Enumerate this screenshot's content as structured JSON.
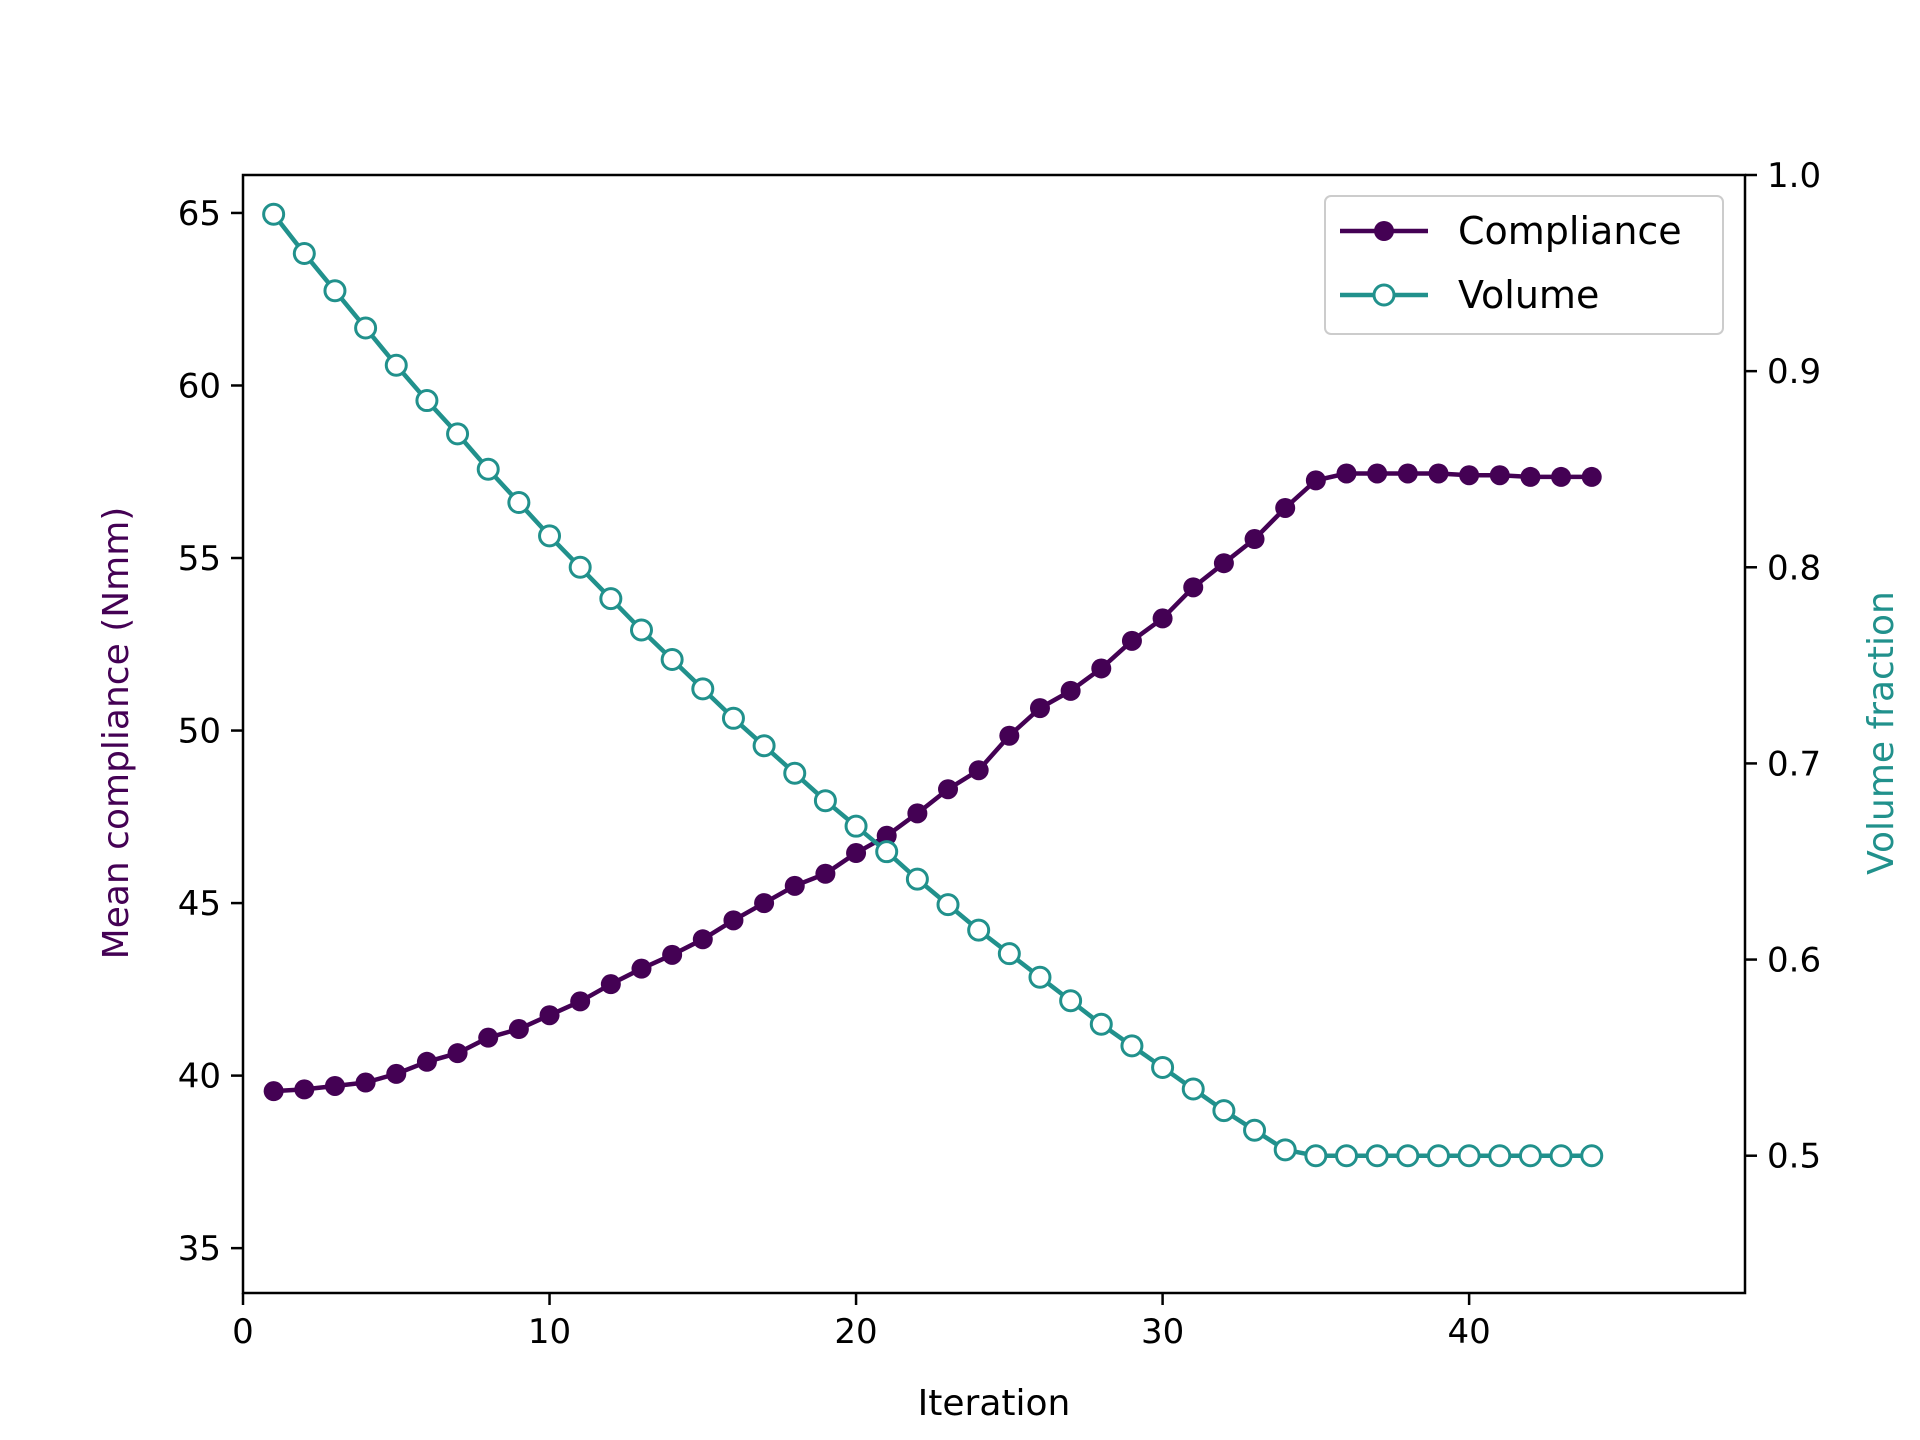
{
  "colors": {
    "compliance": "#440154",
    "volume": "#21918c",
    "axis": "#000000",
    "background": "#ffffff"
  },
  "chart_data": {
    "type": "line",
    "title": "",
    "xlabel": "Iteration",
    "ylabel_left": "Mean compliance (Nmm)",
    "ylabel_right": "Volume fraction",
    "xlim": [
      0,
      49
    ],
    "ylim_left": [
      33.7,
      66.1
    ],
    "ylim_right": [
      0.43,
      1.0
    ],
    "x_ticks": [
      0,
      10,
      20,
      30,
      40
    ],
    "y_left_ticks": [
      35,
      40,
      45,
      50,
      55,
      60,
      65
    ],
    "y_right_ticks": [
      0.5,
      0.6,
      0.7,
      0.8,
      0.9,
      1.0
    ],
    "x_tick_labels": [
      "0",
      "10",
      "20",
      "30",
      "40"
    ],
    "y_left_tick_labels": [
      "35",
      "40",
      "45",
      "50",
      "55",
      "60",
      "65"
    ],
    "y_right_tick_labels": [
      "0.5",
      "0.6",
      "0.7",
      "0.8",
      "0.9",
      "1.0"
    ],
    "grid": false,
    "legend_position": "top-right",
    "x": [
      1,
      2,
      3,
      4,
      5,
      6,
      7,
      8,
      9,
      10,
      11,
      12,
      13,
      14,
      15,
      16,
      17,
      18,
      19,
      20,
      21,
      22,
      23,
      24,
      25,
      26,
      27,
      28,
      29,
      30,
      31,
      32,
      33,
      34,
      35,
      36,
      37,
      38,
      39,
      40,
      41,
      42,
      43,
      44
    ],
    "series": [
      {
        "name": "Compliance",
        "axis": "left",
        "marker": "filled-circle",
        "values": [
          39.55,
          39.6,
          39.7,
          39.8,
          40.05,
          40.4,
          40.65,
          41.1,
          41.35,
          41.75,
          42.15,
          42.65,
          43.1,
          43.5,
          43.95,
          44.5,
          45.0,
          45.5,
          45.85,
          46.45,
          46.95,
          47.6,
          48.3,
          48.85,
          49.85,
          50.65,
          51.15,
          51.8,
          52.6,
          53.25,
          54.15,
          54.85,
          55.55,
          56.45,
          57.25,
          57.45,
          57.45,
          57.45,
          57.45,
          57.4,
          57.4,
          57.35,
          57.35,
          57.35
        ]
      },
      {
        "name": "Volume",
        "axis": "right",
        "marker": "open-circle",
        "values": [
          0.98,
          0.96,
          0.941,
          0.922,
          0.903,
          0.885,
          0.868,
          0.85,
          0.833,
          0.816,
          0.8,
          0.784,
          0.768,
          0.753,
          0.738,
          0.723,
          0.709,
          0.695,
          0.681,
          0.668,
          0.655,
          0.641,
          0.628,
          0.615,
          0.603,
          0.591,
          0.579,
          0.567,
          0.556,
          0.545,
          0.534,
          0.523,
          0.513,
          0.503,
          0.5,
          0.5,
          0.5,
          0.5,
          0.5,
          0.5,
          0.5,
          0.5,
          0.5,
          0.5
        ]
      }
    ]
  }
}
